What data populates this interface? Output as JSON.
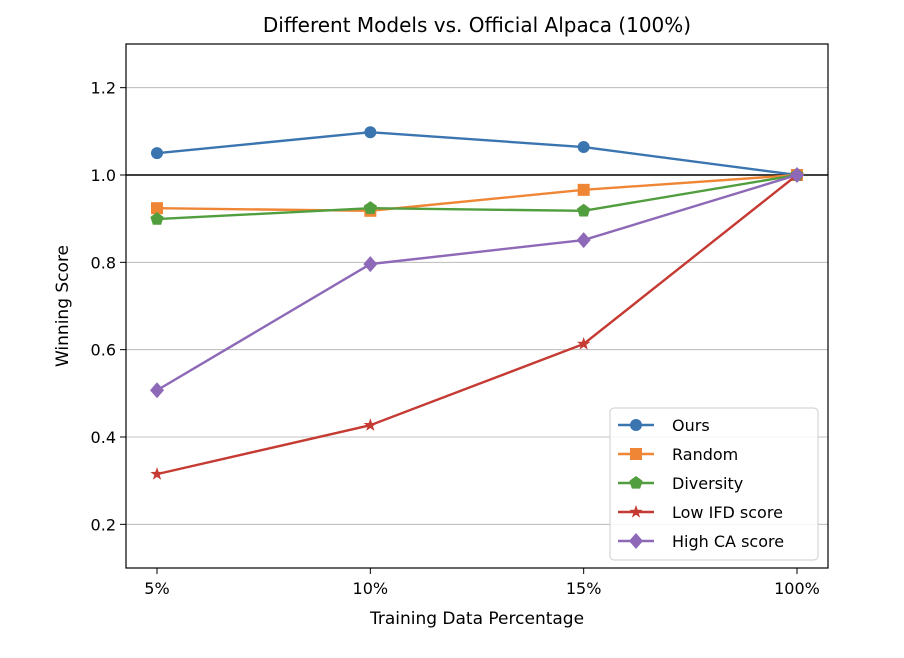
{
  "chart_data": {
    "type": "line",
    "title": "Different Models vs. Official Alpaca (100%)",
    "xlabel": "Training Data Percentage",
    "ylabel": "Winning Score",
    "categories": [
      "5%",
      "10%",
      "15%",
      "100%"
    ],
    "ylim": [
      0.1,
      1.3
    ],
    "yticks": [
      0.2,
      0.4,
      0.6,
      0.8,
      1.0,
      1.2
    ],
    "ytick_labels": [
      "0.2",
      "0.4",
      "0.6",
      "0.8",
      "1.0",
      "1.2"
    ],
    "grid": "horizontal",
    "reference_line": 1.0,
    "legend_placement": "lower-right",
    "series": [
      {
        "name": "Ours",
        "values": [
          1.05,
          1.098,
          1.064,
          1.0
        ],
        "color": "#3a75b0",
        "marker": "circle"
      },
      {
        "name": "Random",
        "values": [
          0.924,
          0.918,
          0.966,
          1.0
        ],
        "color": "#ef8636",
        "marker": "square"
      },
      {
        "name": "Diversity",
        "values": [
          0.899,
          0.924,
          0.918,
          1.0
        ],
        "color": "#519e3e",
        "marker": "pentagon"
      },
      {
        "name": "Low IFD score",
        "values": [
          0.315,
          0.427,
          0.613,
          1.0
        ],
        "color": "#c53a32",
        "marker": "star"
      },
      {
        "name": "High CA score",
        "values": [
          0.507,
          0.796,
          0.851,
          1.0
        ],
        "color": "#8d69b8",
        "marker": "diamond"
      }
    ]
  }
}
